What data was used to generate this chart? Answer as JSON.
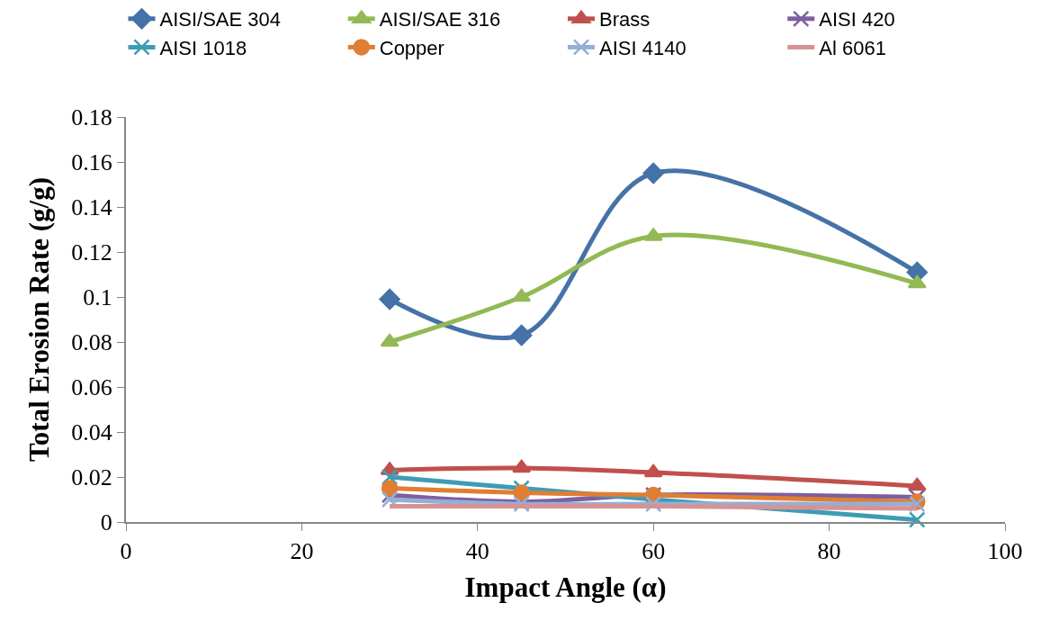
{
  "chart_data": {
    "type": "line",
    "xlabel": "Impact Angle (α)",
    "ylabel": "Total Erosion Rate (g/g)",
    "x": [
      30,
      45,
      60,
      90
    ],
    "xlim": [
      0,
      100
    ],
    "xticks": [
      0,
      20,
      40,
      60,
      80,
      100
    ],
    "ylim": [
      0,
      0.18
    ],
    "yticks": [
      0,
      0.02,
      0.04,
      0.06,
      0.08,
      0.1,
      0.12,
      0.14,
      0.16,
      0.18
    ],
    "legend": "top",
    "line_style": "solid",
    "series": [
      {
        "name": "AISI/SAE 304",
        "color": "#4572a7",
        "marker": "diamond",
        "values": [
          0.099,
          0.083,
          0.155,
          0.111
        ]
      },
      {
        "name": "AISI/SAE 316",
        "color": "#93b955",
        "marker": "triangle",
        "values": [
          0.08,
          0.1,
          0.127,
          0.106
        ]
      },
      {
        "name": "Brass",
        "color": "#c0504d",
        "marker": "triangle",
        "values": [
          0.023,
          0.024,
          0.022,
          0.016
        ]
      },
      {
        "name": "AISI 420",
        "color": "#7d5fa0",
        "marker": "cross",
        "values": [
          0.012,
          0.009,
          0.012,
          0.011
        ]
      },
      {
        "name": "AISI 1018",
        "color": "#3d9cb5",
        "marker": "cross",
        "values": [
          0.02,
          0.015,
          0.01,
          0.001
        ]
      },
      {
        "name": "Copper",
        "color": "#e07e32",
        "marker": "circle",
        "values": [
          0.015,
          0.013,
          0.012,
          0.009
        ]
      },
      {
        "name": "AISI 4140",
        "color": "#95aed6",
        "marker": "cross",
        "values": [
          0.01,
          0.008,
          0.008,
          0.008
        ]
      },
      {
        "name": "Al 6061",
        "color": "#d69392",
        "marker": "none",
        "values": [
          0.007,
          0.007,
          0.007,
          0.006
        ]
      }
    ]
  }
}
